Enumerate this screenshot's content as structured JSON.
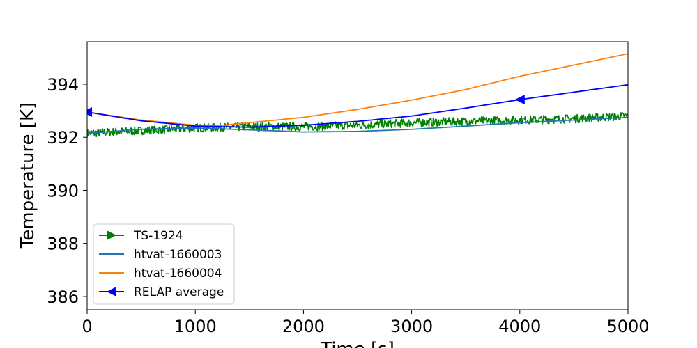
{
  "chart_data": {
    "type": "line",
    "xlabel": "Time [s]",
    "ylabel": "Temperature [K]",
    "xlim": [
      0,
      5000
    ],
    "ylim": [
      385.5,
      395.6
    ],
    "xticks": [
      0,
      1000,
      2000,
      3000,
      4000,
      5000
    ],
    "yticks": [
      386,
      388,
      390,
      392,
      394
    ],
    "grid": false,
    "legend_position": "lower-left",
    "series": [
      {
        "name": "TS-1924",
        "color": "#008000",
        "marker": "triangle-right",
        "noisy": true,
        "x": [
          0,
          500,
          1000,
          1500,
          2000,
          2500,
          3000,
          3500,
          4000,
          4500,
          5000
        ],
        "y": [
          392.15,
          392.25,
          392.35,
          392.4,
          392.4,
          392.45,
          392.55,
          392.6,
          392.65,
          392.7,
          392.8
        ]
      },
      {
        "name": "htvat-1660003",
        "color": "#1f77b4",
        "x": [
          0,
          500,
          1000,
          1500,
          2000,
          2500,
          3000,
          3500,
          4000,
          4500,
          5000
        ],
        "y": [
          392.15,
          392.3,
          392.35,
          392.28,
          392.2,
          392.22,
          392.3,
          392.42,
          392.55,
          392.65,
          392.75
        ]
      },
      {
        "name": "htvat-1660004",
        "color": "#ff7f0e",
        "x": [
          0,
          500,
          1000,
          1250,
          1500,
          2000,
          2500,
          3000,
          3500,
          4000,
          4500,
          5000
        ],
        "y": [
          392.95,
          392.65,
          392.45,
          392.45,
          392.55,
          392.75,
          393.05,
          393.4,
          393.8,
          394.3,
          394.72,
          395.15
        ]
      },
      {
        "name": "RELAP average",
        "color": "#0000ff",
        "marker": "triangle-left",
        "x": [
          0,
          500,
          1000,
          1500,
          2000,
          2500,
          3000,
          3500,
          4000,
          4500,
          5000
        ],
        "y": [
          392.95,
          392.62,
          392.42,
          392.38,
          392.45,
          392.6,
          392.8,
          393.1,
          393.42,
          393.7,
          393.98
        ]
      }
    ]
  }
}
